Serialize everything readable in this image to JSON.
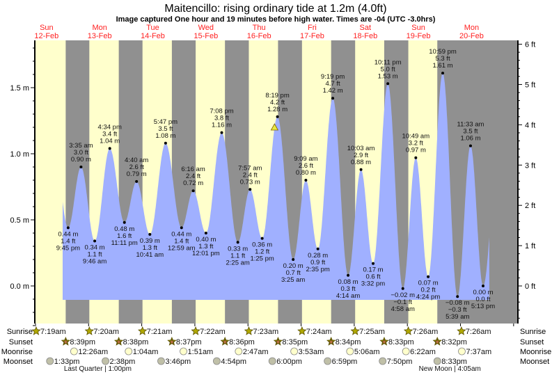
{
  "chart_data": {
    "type": "area",
    "title": "Maitencillo: rising  ordinary tide at 1.2m (4.0ft)",
    "subtitle": "Image captured One hour and 19 minutes before high water. Times are -04 (UTC -3.0hrs)",
    "days": [
      {
        "dow": "Sun",
        "date": "12-Feb"
      },
      {
        "dow": "Mon",
        "date": "13-Feb"
      },
      {
        "dow": "Tue",
        "date": "14-Feb"
      },
      {
        "dow": "Wed",
        "date": "15-Feb"
      },
      {
        "dow": "Thu",
        "date": "16-Feb"
      },
      {
        "dow": "Fri",
        "date": "17-Feb"
      },
      {
        "dow": "Sat",
        "date": "18-Feb"
      },
      {
        "dow": "Sun",
        "date": "19-Feb"
      },
      {
        "dow": "Mon",
        "date": "20-Feb"
      }
    ],
    "left_axis": {
      "unit": "m",
      "ticks": [
        "0.0 m",
        "0.5 m",
        "1.0 m",
        "1.5 m"
      ],
      "tick_values": [
        0,
        0.5,
        1.0,
        1.5
      ]
    },
    "right_axis": {
      "unit": "ft",
      "ticks": [
        "0 ft",
        "1 ft",
        "2 ft",
        "3 ft",
        "4 ft",
        "5 ft",
        "6 ft"
      ],
      "tick_values": [
        0,
        1,
        2,
        3,
        4,
        5,
        6
      ]
    },
    "ylim_m": [
      -0.3,
      1.85
    ],
    "current": {
      "day": "16-Feb",
      "time": "7:00 pm",
      "height_m": 1.2,
      "height_ft": 4.0
    },
    "extremes": [
      {
        "type": "low",
        "day": "12-Feb",
        "time": "9:45 pm",
        "m": "0.44 m",
        "ft": "1.4 ft",
        "value": 0.44
      },
      {
        "type": "high",
        "day": "13-Feb",
        "time": "3:35 am",
        "m": "0.90 m",
        "ft": "3.0 ft",
        "value": 0.9
      },
      {
        "type": "low",
        "day": "13-Feb",
        "time": "9:46 am",
        "m": "0.34 m",
        "ft": "1.1 ft",
        "value": 0.34
      },
      {
        "type": "high",
        "day": "13-Feb",
        "time": "4:34 pm",
        "m": "1.04 m",
        "ft": "3.4 ft",
        "value": 1.04
      },
      {
        "type": "low",
        "day": "13-Feb",
        "time": "11:11 pm",
        "m": "0.48 m",
        "ft": "1.6 ft",
        "value": 0.48
      },
      {
        "type": "high",
        "day": "14-Feb",
        "time": "4:40 am",
        "m": "0.79 m",
        "ft": "2.6 ft",
        "value": 0.79
      },
      {
        "type": "low",
        "day": "14-Feb",
        "time": "10:41 am",
        "m": "0.39 m",
        "ft": "1.3 ft",
        "value": 0.39
      },
      {
        "type": "high",
        "day": "14-Feb",
        "time": "5:47 pm",
        "m": "1.08 m",
        "ft": "3.5 ft",
        "value": 1.08
      },
      {
        "type": "low",
        "day": "15-Feb",
        "time": "12:59 am",
        "m": "0.44 m",
        "ft": "1.4 ft",
        "value": 0.44
      },
      {
        "type": "high",
        "day": "15-Feb",
        "time": "6:16 am",
        "m": "0.72 m",
        "ft": "2.4 ft",
        "value": 0.72
      },
      {
        "type": "low",
        "day": "15-Feb",
        "time": "12:01 pm",
        "m": "0.40 m",
        "ft": "1.3 ft",
        "value": 0.4
      },
      {
        "type": "high",
        "day": "15-Feb",
        "time": "7:08 pm",
        "m": "1.16 m",
        "ft": "3.8 ft",
        "value": 1.16
      },
      {
        "type": "low",
        "day": "16-Feb",
        "time": "2:25 am",
        "m": "0.33 m",
        "ft": "1.1 ft",
        "value": 0.33
      },
      {
        "type": "high",
        "day": "16-Feb",
        "time": "7:57 am",
        "m": "0.73 m",
        "ft": "2.4 ft",
        "value": 0.73
      },
      {
        "type": "low",
        "day": "16-Feb",
        "time": "1:25 pm",
        "m": "0.36 m",
        "ft": "1.2 ft",
        "value": 0.36
      },
      {
        "type": "high",
        "day": "16-Feb",
        "time": "8:19 pm",
        "m": "1.28 m",
        "ft": "4.2 ft",
        "value": 1.28
      },
      {
        "type": "low",
        "day": "17-Feb",
        "time": "3:25 am",
        "m": "0.20 m",
        "ft": "0.7 ft",
        "value": 0.2
      },
      {
        "type": "high",
        "day": "17-Feb",
        "time": "9:09 am",
        "m": "0.80 m",
        "ft": "2.6 ft",
        "value": 0.8
      },
      {
        "type": "low",
        "day": "17-Feb",
        "time": "2:35 pm",
        "m": "0.28 m",
        "ft": "0.9 ft",
        "value": 0.28
      },
      {
        "type": "high",
        "day": "17-Feb",
        "time": "9:19 pm",
        "m": "1.42 m",
        "ft": "4.7 ft",
        "value": 1.42
      },
      {
        "type": "low",
        "day": "18-Feb",
        "time": "4:14 am",
        "m": "0.08 m",
        "ft": "0.3 ft",
        "value": 0.08
      },
      {
        "type": "high",
        "day": "18-Feb",
        "time": "10:03 am",
        "m": "0.88 m",
        "ft": "2.9 ft",
        "value": 0.88
      },
      {
        "type": "low",
        "day": "18-Feb",
        "time": "3:32 pm",
        "m": "0.17 m",
        "ft": "0.6 ft",
        "value": 0.17
      },
      {
        "type": "high",
        "day": "18-Feb",
        "time": "10:11 pm",
        "m": "1.53 m",
        "ft": "5.0 ft",
        "value": 1.53
      },
      {
        "type": "low",
        "day": "19-Feb",
        "time": "4:58 am",
        "m": "−0.02 m",
        "ft": "−0.1 ft",
        "value": -0.02
      },
      {
        "type": "high",
        "day": "19-Feb",
        "time": "10:49 am",
        "m": "0.97 m",
        "ft": "3.2 ft",
        "value": 0.97
      },
      {
        "type": "low",
        "day": "19-Feb",
        "time": "4:24 pm",
        "m": "0.07 m",
        "ft": "0.2 ft",
        "value": 0.07
      },
      {
        "type": "high",
        "day": "19-Feb",
        "time": "10:59 pm",
        "m": "1.61 m",
        "ft": "5.3 ft",
        "value": 1.61
      },
      {
        "type": "low",
        "day": "20-Feb",
        "time": "5:39 am",
        "m": "−0.08 m",
        "ft": "−0.3 ft",
        "value": -0.08
      },
      {
        "type": "high",
        "day": "20-Feb",
        "time": "11:33 am",
        "m": "1.06 m",
        "ft": "3.5 ft",
        "value": 1.06
      },
      {
        "type": "low",
        "day": "20-Feb",
        "time": "5:13 pm",
        "m": "0.00 m",
        "ft": "0.0 ft",
        "value": 0.0
      }
    ],
    "rows": {
      "sunrise": {
        "label": "Sunrise",
        "items": [
          {
            "day": "12-Feb",
            "time": "7:19am"
          },
          {
            "day": "13-Feb",
            "time": "7:20am"
          },
          {
            "day": "14-Feb",
            "time": "7:21am"
          },
          {
            "day": "15-Feb",
            "time": "7:22am"
          },
          {
            "day": "16-Feb",
            "time": "7:23am"
          },
          {
            "day": "17-Feb",
            "time": "7:24am"
          },
          {
            "day": "18-Feb",
            "time": "7:25am"
          },
          {
            "day": "19-Feb",
            "time": "7:26am"
          },
          {
            "day": "20-Feb",
            "time": "7:26am"
          }
        ]
      },
      "sunset": {
        "label": "Sunset",
        "items": [
          {
            "day": "12-Feb",
            "time": "8:39pm"
          },
          {
            "day": "13-Feb",
            "time": "8:38pm"
          },
          {
            "day": "14-Feb",
            "time": "8:37pm"
          },
          {
            "day": "15-Feb",
            "time": "8:36pm"
          },
          {
            "day": "16-Feb",
            "time": "8:35pm"
          },
          {
            "day": "17-Feb",
            "time": "8:34pm"
          },
          {
            "day": "18-Feb",
            "time": "8:33pm"
          },
          {
            "day": "19-Feb",
            "time": "8:32pm"
          }
        ]
      },
      "moonrise": {
        "label": "Moonrise",
        "items": [
          {
            "day": "13-Feb",
            "time": "12:26am"
          },
          {
            "day": "14-Feb",
            "time": "1:04am"
          },
          {
            "day": "15-Feb",
            "time": "1:51am"
          },
          {
            "day": "16-Feb",
            "time": "2:47am"
          },
          {
            "day": "17-Feb",
            "time": "3:53am"
          },
          {
            "day": "18-Feb",
            "time": "5:06am"
          },
          {
            "day": "19-Feb",
            "time": "6:22am"
          },
          {
            "day": "20-Feb",
            "time": "7:37am"
          }
        ]
      },
      "moonset": {
        "label": "Moonset",
        "items": [
          {
            "day": "12-Feb",
            "time": "1:33pm"
          },
          {
            "day": "13-Feb",
            "time": "2:38pm"
          },
          {
            "day": "14-Feb",
            "time": "3:46pm"
          },
          {
            "day": "15-Feb",
            "time": "4:54pm"
          },
          {
            "day": "16-Feb",
            "time": "6:00pm"
          },
          {
            "day": "17-Feb",
            "time": "6:59pm"
          },
          {
            "day": "18-Feb",
            "time": "7:50pm"
          },
          {
            "day": "19-Feb",
            "time": "8:33pm"
          }
        ]
      }
    },
    "moon_phases": [
      {
        "day": "13-Feb",
        "time": "1:00pm",
        "text": "Last Quarter | 1:00pm"
      },
      {
        "day": "20-Feb",
        "time": "4:05am",
        "text": "New Moon | 4:05am"
      }
    ],
    "colors": {
      "day": "#ffffcc",
      "night": "#909090",
      "water": "#a0b0ff",
      "day_label": "#ff2020",
      "marker": "#e8e840"
    }
  }
}
